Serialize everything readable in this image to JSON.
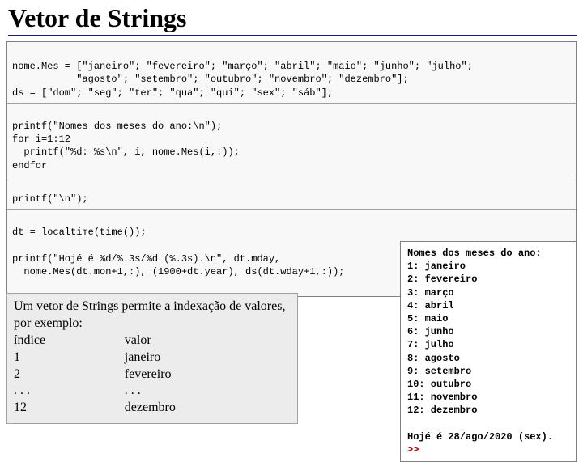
{
  "title": "Vetor de Strings",
  "code": {
    "seg1": "nome.Mes = [\"janeiro\"; \"fevereiro\"; \"março\"; \"abril\"; \"maio\"; \"junho\"; \"julho\";\n           \"agosto\"; \"setembro\"; \"outubro\"; \"novembro\"; \"dezembro\"];\nds = [\"dom\"; \"seg\"; \"ter\"; \"qua\"; \"qui\"; \"sex\"; \"sáb\"];",
    "seg2": "printf(\"Nomes dos meses do ano:\\n\");\nfor i=1:12\n  printf(\"%d: %s\\n\", i, nome.Mes(i,:));\nendfor",
    "seg3": "printf(\"\\n\");",
    "seg4": "dt = localtime(time());\n\nprintf(\"Hojé é %d/%.3s/%d (%.3s).\\n\", dt.mday,\n  nome.Mes(dt.mon+1,:), (1900+dt.year), ds(dt.wday+1,:));"
  },
  "desc": {
    "intro": "Um vetor de Strings permite a indexação de valores, por exemplo:",
    "h1": "índice",
    "h2": "valor",
    "rows": [
      [
        "1",
        "janeiro"
      ],
      [
        "2",
        "fevereiro"
      ],
      [
        ". . .",
        ". . ."
      ],
      [
        "12",
        "dezembro"
      ]
    ]
  },
  "output": {
    "header": "Nomes dos meses do ano:",
    "lines": [
      "1: janeiro",
      "2: fevereiro",
      "3: março",
      "4: abril",
      "5: maio",
      "6: junho",
      "7: julho",
      "8: agosto",
      "9: setembro",
      "10: outubro",
      "11: novembro",
      "12: dezembro"
    ],
    "footer": "Hojé é 28/ago/2020 (sex).",
    "prompt": ">>"
  },
  "colors": {
    "title_rule": "#1a1a7a",
    "code_bg": "#f8f8f8",
    "code_border": "#808080",
    "desc_bg": "#ececec",
    "desc_border": "#a0a0a0",
    "output_bg": "#ffffff",
    "prompt_color": "#aa0000"
  },
  "fonts": {
    "title_family": "Times New Roman",
    "title_size_pt": 24,
    "code_family": "Courier New",
    "code_size_pt": 9,
    "desc_family": "Times New Roman",
    "desc_size_pt": 12
  }
}
